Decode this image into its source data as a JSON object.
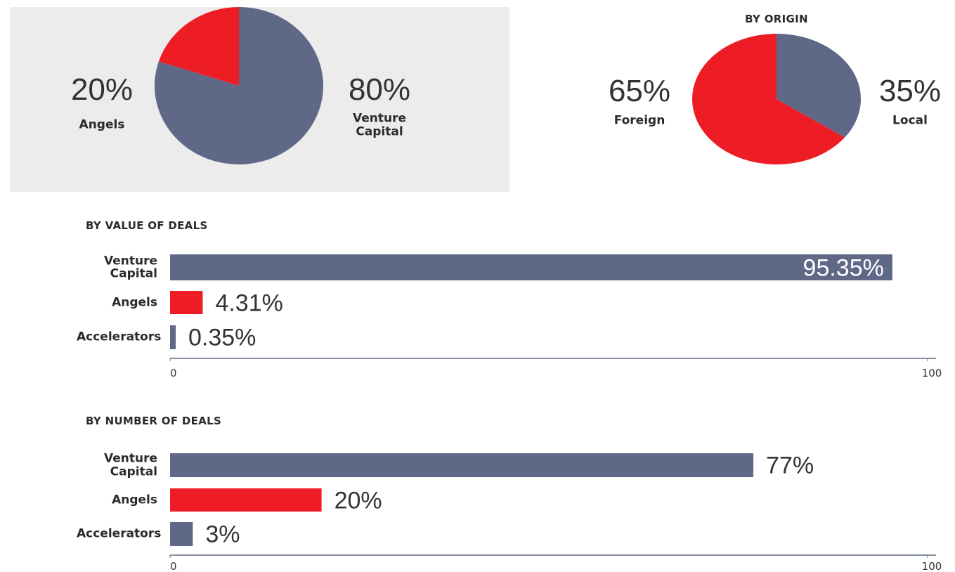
{
  "chart_data": [
    {
      "type": "pie",
      "categories": [
        "Venture Capital",
        "Angels"
      ],
      "values": [
        80,
        20
      ],
      "value_labels": [
        "80%",
        "20%"
      ],
      "colors": [
        "#5f6887",
        "#ee1c25"
      ],
      "background": "#ececec"
    },
    {
      "type": "pie",
      "title": "BY ORIGIN",
      "categories": [
        "Local",
        "Foreign"
      ],
      "values": [
        35,
        65
      ],
      "value_labels": [
        "35%",
        "65%"
      ],
      "colors": [
        "#5f6887",
        "#ee1c25"
      ]
    },
    {
      "type": "hbar",
      "title": "BY VALUE OF DEALS",
      "categories": [
        "Venture Capital",
        "Angels",
        "Accelerators"
      ],
      "values": [
        95.35,
        4.31,
        0.35
      ],
      "value_labels": [
        "95.35%",
        "4.31%",
        "0.35%"
      ],
      "colors": [
        "#5f6887",
        "#ee1c25",
        "#5f6887"
      ],
      "xlim": [
        0,
        100
      ],
      "xticks": [
        0,
        100
      ]
    },
    {
      "type": "hbar",
      "title": "BY NUMBER OF DEALS",
      "categories": [
        "Venture Capital",
        "Angels",
        "Accelerators"
      ],
      "values": [
        77,
        20,
        3
      ],
      "value_labels": [
        "77%",
        "20%",
        "3%"
      ],
      "colors": [
        "#5f6887",
        "#ee1c25",
        "#5f6887"
      ],
      "xlim": [
        0,
        100
      ],
      "xticks": [
        0,
        100
      ]
    }
  ]
}
